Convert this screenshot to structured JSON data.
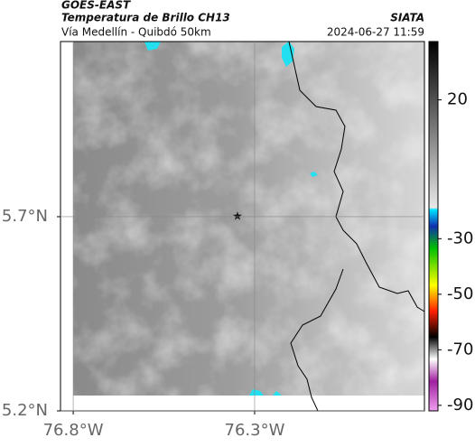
{
  "header": {
    "title": "GOES-EAST",
    "subtitle": "Temperatura de Brillo CH13",
    "region": "Vía Medellín - Quibdó 50km",
    "source": "SIATA",
    "timestamp": "2024-06-27 11:59"
  },
  "map": {
    "xlim": [
      -76.835,
      -75.832
    ],
    "ylim": [
      5.2,
      6.151
    ],
    "xticks": [
      {
        "value": -76.8,
        "label": "76.8°W"
      },
      {
        "value": -76.3,
        "label": "76.3°W"
      }
    ],
    "yticks": [
      {
        "value": 5.7,
        "label": "5.7°N"
      },
      {
        "value": 5.2,
        "label": "5.2°N"
      }
    ],
    "grid": true
  },
  "colorbar": {
    "lim": [
      -92,
      41
    ],
    "ticks": [
      20,
      -30,
      -50,
      -70,
      -90
    ]
  }
}
